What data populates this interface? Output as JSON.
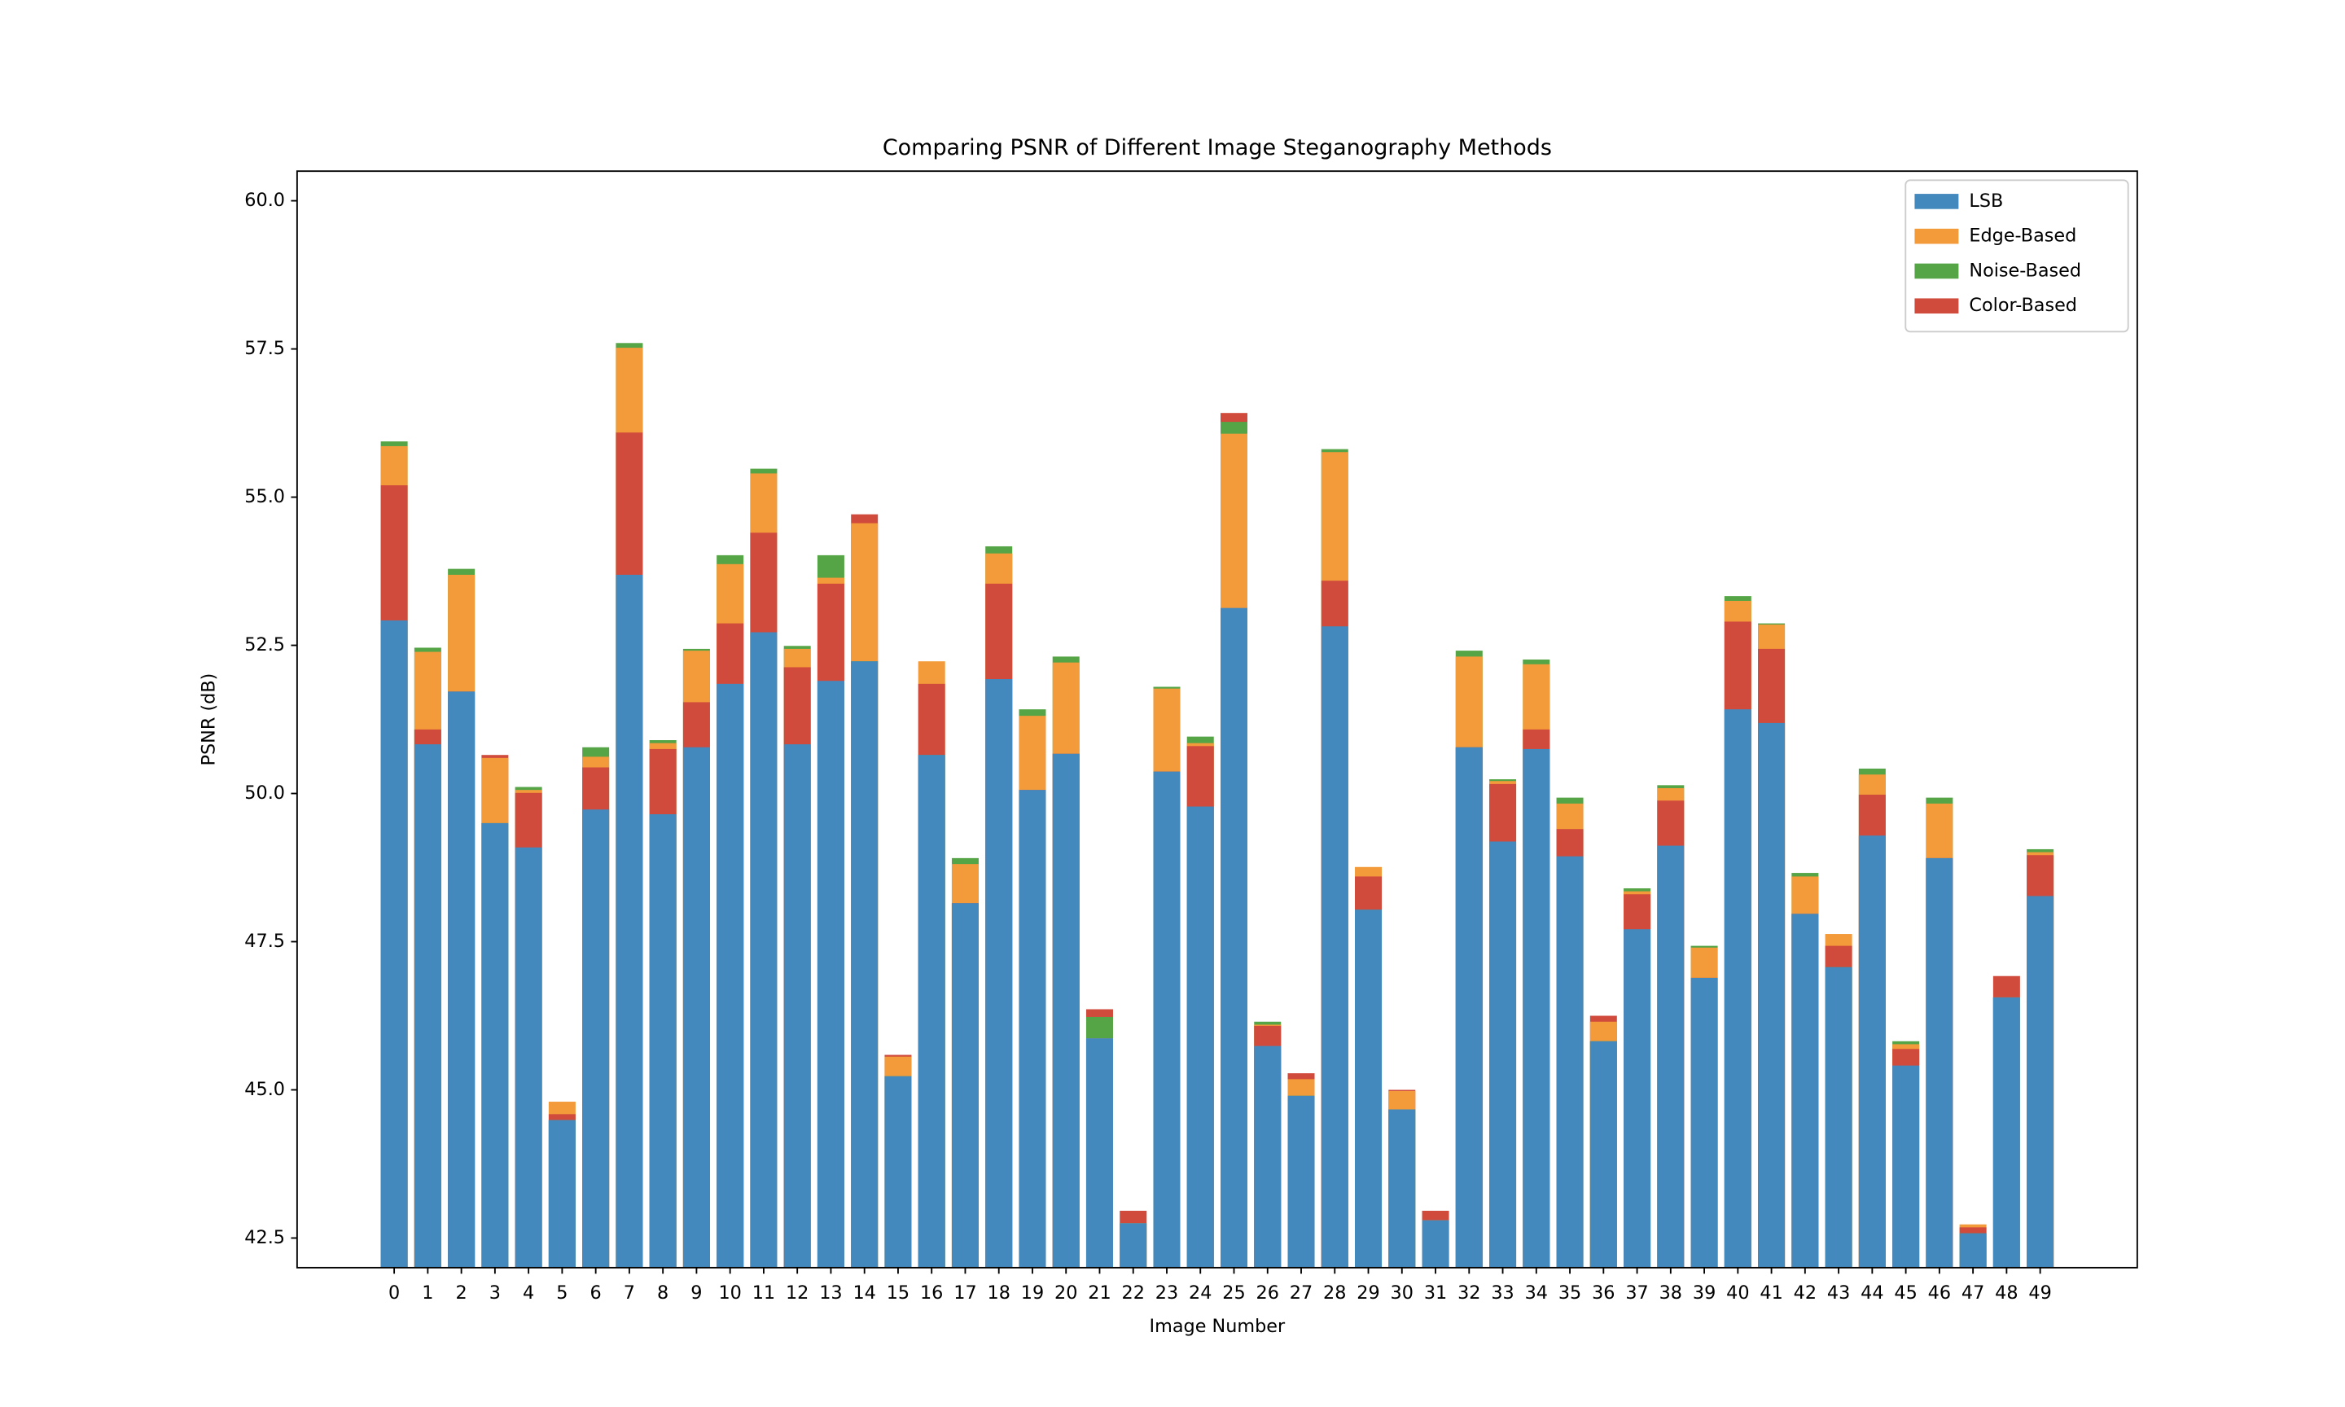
{
  "chart_data": {
    "type": "bar",
    "title": "Comparing PSNR of Different Image Steganography Methods",
    "x_label": "Image Number",
    "y_label": "PSNR (dB)",
    "x": [
      0,
      1,
      2,
      3,
      4,
      5,
      6,
      7,
      8,
      9,
      10,
      11,
      12,
      13,
      14,
      15,
      16,
      17,
      18,
      19,
      20,
      21,
      22,
      23,
      24,
      25,
      26,
      27,
      28,
      29,
      30,
      31,
      32,
      33,
      34,
      35,
      36,
      37,
      38,
      39,
      40,
      41,
      42,
      43,
      44,
      45,
      46,
      47,
      48,
      49
    ],
    "xticks": [
      0,
      1,
      2,
      3,
      4,
      5,
      6,
      7,
      8,
      9,
      10,
      11,
      12,
      13,
      14,
      15,
      16,
      17,
      18,
      19,
      20,
      21,
      22,
      23,
      24,
      25,
      26,
      27,
      28,
      29,
      30,
      31,
      32,
      33,
      34,
      35,
      36,
      37,
      38,
      39,
      40,
      41,
      42,
      43,
      44,
      45,
      46,
      47,
      48,
      49
    ],
    "xlim": [
      -2.89,
      51.89
    ],
    "ylim": [
      42.0,
      60.5
    ],
    "yticks": [
      42.5,
      {
        "value": 45,
        "label": "45.0"
      },
      47.5,
      {
        "value": 50,
        "label": "50.0"
      },
      52.5,
      {
        "value": 55,
        "label": "55.0"
      },
      57.5,
      {
        "value": 60,
        "label": "60.0"
      }
    ],
    "grid": false,
    "legend": "upper right",
    "series": [
      {
        "name": "LSB",
        "color": "#4389be",
        "values": [
          52.92,
          50.83,
          51.72,
          49.5,
          49.09,
          44.49,
          49.73,
          53.69,
          49.65,
          50.78,
          51.85,
          52.72,
          50.83,
          51.9,
          52.23,
          45.23,
          50.65,
          48.15,
          51.93,
          50.06,
          50.67,
          45.87,
          42.75,
          50.37,
          49.78,
          53.13,
          45.74,
          44.9,
          52.82,
          48.04,
          44.67,
          42.8,
          50.78,
          49.19,
          50.75,
          48.94,
          45.82,
          47.71,
          49.12,
          46.89,
          51.42,
          51.19,
          47.97,
          47.07,
          49.29,
          45.41,
          48.91,
          42.58,
          46.56,
          48.27
        ]
      },
      {
        "name": "Edge-Based",
        "color": "#f39a3a",
        "values": [
          55.86,
          52.39,
          53.69,
          50.6,
          50.06,
          44.8,
          50.62,
          57.52,
          50.85,
          52.41,
          53.87,
          55.4,
          52.44,
          53.64,
          54.56,
          45.56,
          52.23,
          48.81,
          54.05,
          51.31,
          52.21,
          45.87,
          42.75,
          51.77,
          50.85,
          56.07,
          46.1,
          45.18,
          55.76,
          48.76,
          44.98,
          42.8,
          52.31,
          50.21,
          52.18,
          49.83,
          46.15,
          48.35,
          50.09,
          47.4,
          53.25,
          52.85,
          48.6,
          47.63,
          50.32,
          45.77,
          49.83,
          42.73,
          46.56,
          49.01
        ]
      },
      {
        "name": "Noise-Based",
        "color": "#55a546",
        "values": [
          55.94,
          52.46,
          53.79,
          49.5,
          50.11,
          44.49,
          50.78,
          57.6,
          50.9,
          52.44,
          54.02,
          55.48,
          52.49,
          54.02,
          52.23,
          45.23,
          50.65,
          48.91,
          54.17,
          51.42,
          52.31,
          46.23,
          42.75,
          51.8,
          50.96,
          56.27,
          46.15,
          44.9,
          55.81,
          48.04,
          44.67,
          42.8,
          52.41,
          50.24,
          52.26,
          49.93,
          45.82,
          48.4,
          50.14,
          47.43,
          53.33,
          52.87,
          48.66,
          47.07,
          50.42,
          45.82,
          49.93,
          42.58,
          46.56,
          49.06
        ]
      },
      {
        "name": "Color-Based",
        "color": "#d14b3d",
        "values": [
          55.2,
          51.08,
          51.72,
          50.65,
          50.01,
          44.59,
          50.44,
          56.09,
          50.75,
          51.54,
          52.87,
          54.4,
          52.13,
          53.54,
          54.71,
          45.59,
          51.85,
          48.15,
          53.54,
          50.06,
          50.67,
          46.36,
          42.96,
          50.37,
          50.8,
          56.42,
          46.08,
          45.28,
          53.59,
          48.6,
          45.0,
          42.96,
          50.78,
          50.16,
          51.08,
          49.4,
          46.25,
          48.3,
          49.88,
          46.89,
          52.9,
          52.44,
          47.97,
          47.43,
          49.98,
          45.69,
          48.91,
          42.68,
          46.92,
          48.96
        ]
      }
    ]
  }
}
